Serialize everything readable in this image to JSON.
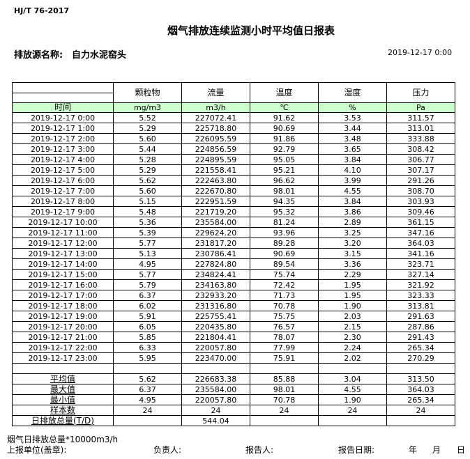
{
  "standard": "HJ/T  76-2017",
  "title": "烟气排放连续监测小时平均值日报表",
  "source_label": "排放源名称:",
  "source_value": "自力水泥窑头",
  "report_datetime": "2019-12-17  0:00",
  "columns": [
    "颗粒物",
    "流量",
    "温度",
    "湿度",
    "压力"
  ],
  "units_label": "时间",
  "units": [
    "mg/m3",
    "m3/h",
    "℃",
    "%",
    "Pa"
  ],
  "rows": [
    [
      "2019-12-17 0:00",
      "5.52",
      "227072.41",
      "91.62",
      "3.53",
      "311.57"
    ],
    [
      "2019-12-17 1:00",
      "5.29",
      "225718.80",
      "90.69",
      "3.44",
      "313.01"
    ],
    [
      "2019-12-17 2:00",
      "5.60",
      "226095.59",
      "91.86",
      "3.48",
      "333.88"
    ],
    [
      "2019-12-17 3:00",
      "5.44",
      "224856.59",
      "92.79",
      "3.65",
      "308.42"
    ],
    [
      "2019-12-17 4:00",
      "5.28",
      "224895.59",
      "95.05",
      "3.84",
      "306.77"
    ],
    [
      "2019-12-17 5:00",
      "5.29",
      "221558.41",
      "95.21",
      "4.10",
      "307.17"
    ],
    [
      "2019-12-17 6:00",
      "5.62",
      "222463.80",
      "96.62",
      "3.99",
      "291.26"
    ],
    [
      "2019-12-17 7:00",
      "5.60",
      "222670.80",
      "98.01",
      "4.55",
      "308.70"
    ],
    [
      "2019-12-17 8:00",
      "5.15",
      "222951.59",
      "94.35",
      "3.84",
      "303.93"
    ],
    [
      "2019-12-17 9:00",
      "5.48",
      "221719.20",
      "95.32",
      "3.86",
      "309.46"
    ],
    [
      "2019-12-17 10:00",
      "5.36",
      "235584.00",
      "81.24",
      "2.89",
      "361.15"
    ],
    [
      "2019-12-17 11:00",
      "5.39",
      "229624.20",
      "93.96",
      "3.25",
      "347.16"
    ],
    [
      "2019-12-17 12:00",
      "5.77",
      "231817.20",
      "89.28",
      "3.20",
      "364.03"
    ],
    [
      "2019-12-17 13:00",
      "5.13",
      "230786.41",
      "90.69",
      "3.15",
      "341.16"
    ],
    [
      "2019-12-17 14:00",
      "4.95",
      "227824.80",
      "89.54",
      "3.36",
      "323.71"
    ],
    [
      "2019-12-17 15:00",
      "5.77",
      "234824.41",
      "75.74",
      "2.29",
      "327.14"
    ],
    [
      "2019-12-17 16:00",
      "5.79",
      "234163.80",
      "72.42",
      "1.95",
      "321.92"
    ],
    [
      "2019-12-17 17:00",
      "6.37",
      "232933.20",
      "71.73",
      "1.95",
      "323.33"
    ],
    [
      "2019-12-17 18:00",
      "6.02",
      "231316.80",
      "70.78",
      "1.90",
      "313.81"
    ],
    [
      "2019-12-17 19:00",
      "5.91",
      "225755.41",
      "75.75",
      "2.03",
      "291.63"
    ],
    [
      "2019-12-17 20:00",
      "6.05",
      "220435.80",
      "76.57",
      "2.15",
      "287.86"
    ],
    [
      "2019-12-17 21:00",
      "5.85",
      "221804.41",
      "78.07",
      "2.30",
      "291.43"
    ],
    [
      "2019-12-17 22:00",
      "6.33",
      "220057.80",
      "77.99",
      "2.24",
      "265.34"
    ],
    [
      "2019-12-17 23:00",
      "5.95",
      "223470.00",
      "75.91",
      "2.02",
      "270.29"
    ]
  ],
  "summary": [
    [
      "平均值",
      "5.62",
      "226683.38",
      "85.88",
      "3.04",
      "313.50"
    ],
    [
      "最大值",
      "6.37",
      "235584.00",
      "98.01",
      "4.55",
      "364.03"
    ],
    [
      "最小值",
      "4.95",
      "220057.80",
      "70.78",
      "1.90",
      "265.34"
    ],
    [
      "样本数",
      "24",
      "24",
      "24",
      "24",
      "24"
    ],
    [
      "日排放总量(T/D)",
      "",
      "544.04",
      "",
      "",
      ""
    ]
  ],
  "footer": {
    "note": "烟气日排放总量*10000m3/h",
    "unit_label": "上报单位(盖章):",
    "responsible_label": "负责人:",
    "reporter_label": "报告人:",
    "date_label": "报告日期:",
    "year": "年",
    "month": "月",
    "day": "日"
  }
}
